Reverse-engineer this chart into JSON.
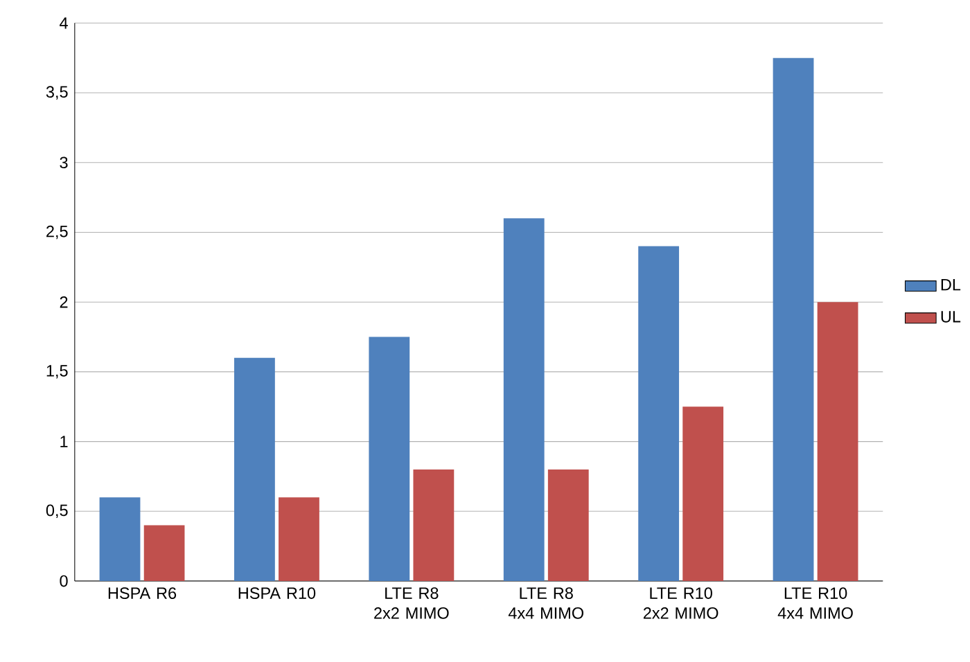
{
  "chart_data": {
    "type": "bar",
    "categories": [
      "HSPA R6",
      "HSPA R10",
      "LTE R8 2x2 MIMO",
      "LTE R8 4x4 MIMO",
      "LTE R10 2x2 MIMO",
      "LTE R10 4x4 MIMO"
    ],
    "series": [
      {
        "name": "DL",
        "color": "#4f81bd",
        "values": [
          0.6,
          1.6,
          1.75,
          2.6,
          2.4,
          3.75
        ]
      },
      {
        "name": "UL",
        "color": "#c0504d",
        "values": [
          0.4,
          0.6,
          0.8,
          0.8,
          1.25,
          2.0
        ]
      }
    ],
    "ylim": [
      0,
      4
    ],
    "yticks": [
      0,
      {
        "value": 0.5,
        "label": "0,5"
      },
      1,
      {
        "value": 1.5,
        "label": "1,5"
      },
      2,
      {
        "value": 2.5,
        "label": "2,5"
      },
      3,
      {
        "value": 3.5,
        "label": "3,5"
      },
      4
    ],
    "grid": "y",
    "legend": "right"
  }
}
